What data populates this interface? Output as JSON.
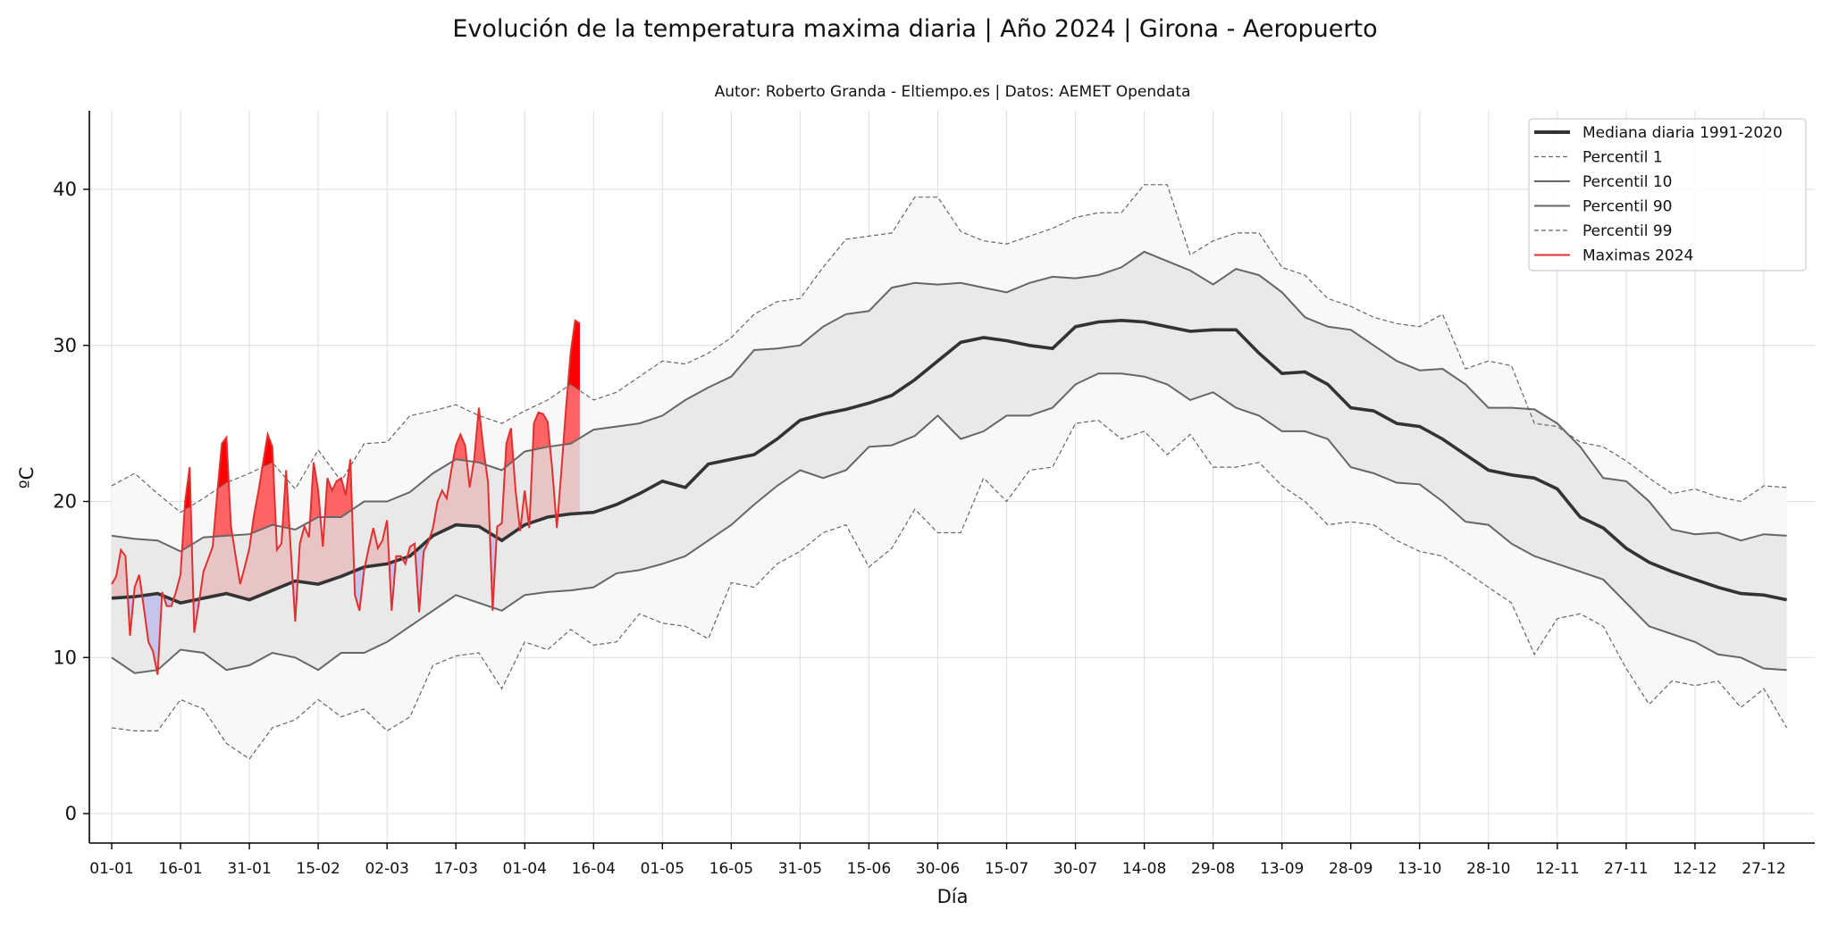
{
  "chart_data": {
    "type": "line",
    "title": "Evolución de la temperatura maxima diaria | Año 2024 | Girona - Aeropuerto",
    "subtitle": "Autor: Roberto Granda - Eltiempo.es | Datos: AEMET Opendata",
    "xlabel": "Día",
    "ylabel": "ºC",
    "ylim": [
      -1.9,
      45
    ],
    "yticks": [
      0,
      10,
      20,
      30,
      40
    ],
    "xtick_labels": [
      "01-01",
      "16-01",
      "31-01",
      "15-02",
      "02-03",
      "17-03",
      "01-04",
      "16-04",
      "01-05",
      "16-05",
      "31-05",
      "15-06",
      "30-06",
      "15-07",
      "30-07",
      "14-08",
      "29-08",
      "13-09",
      "28-09",
      "13-10",
      "28-10",
      "12-11",
      "27-11",
      "12-12",
      "27-12"
    ],
    "xtick_step_days": 15,
    "grid": true,
    "legend_position": "top-right",
    "legend": [
      "Mediana diaria 1991-2020",
      "Percentil 1",
      "Percentil 10",
      "Percentil 90",
      "Percentil 99",
      "Maximas 2024"
    ],
    "colors": {
      "median": "#333333",
      "percentile": "#666666",
      "max2024": "#e03030",
      "band_outer": "#f8f8f8",
      "band_inner": "#e9e9e9",
      "above_median": "#e8c4c4",
      "above_p90": "#ff6464",
      "above_p99": "#ff0000",
      "below_median": "#c4c4ec"
    },
    "climatology_day_step": 5,
    "series": [
      {
        "name": "Mediana diaria 1991-2020",
        "values": [
          13.8,
          13.9,
          14.1,
          13.5,
          13.8,
          14.1,
          13.7,
          14.3,
          14.9,
          14.7,
          15.2,
          15.8,
          16.0,
          16.5,
          17.8,
          18.5,
          18.4,
          17.5,
          18.5,
          19.0,
          19.2,
          19.3,
          19.8,
          20.5,
          21.3,
          20.9,
          22.4,
          22.7,
          23.0,
          24.0,
          25.2,
          25.6,
          25.9,
          26.3,
          26.8,
          27.8,
          29.0,
          30.2,
          30.5,
          30.3,
          30.0,
          29.8,
          31.2,
          31.5,
          31.6,
          31.5,
          31.2,
          30.9,
          31.0,
          31.0,
          29.5,
          28.2,
          28.3,
          27.5,
          26.0,
          25.8,
          25.0,
          24.8,
          24.0,
          23.0,
          22.0,
          21.7,
          21.5,
          20.8,
          19.0,
          18.3,
          17.0,
          16.1,
          15.5,
          15.0,
          14.5,
          14.1,
          14.0,
          13.7
        ]
      },
      {
        "name": "Percentil 1",
        "values": [
          5.5,
          5.3,
          5.3,
          7.3,
          6.7,
          4.5,
          3.5,
          5.5,
          6.0,
          7.3,
          6.2,
          6.7,
          5.3,
          6.2,
          9.5,
          10.1,
          10.3,
          8.0,
          11.0,
          10.5,
          11.8,
          10.8,
          11.0,
          12.8,
          12.2,
          12.0,
          11.2,
          14.8,
          14.5,
          16.0,
          16.8,
          18.0,
          18.5,
          15.8,
          17.0,
          19.5,
          18.0,
          18.0,
          21.5,
          20.0,
          22.0,
          22.2,
          25.0,
          25.2,
          24.0,
          24.5,
          23.0,
          24.3,
          22.2,
          22.2,
          22.5,
          21.0,
          20.0,
          18.5,
          18.7,
          18.5,
          17.5,
          16.8,
          16.5,
          15.5,
          14.5,
          13.5,
          10.2,
          12.5,
          12.8,
          12.0,
          9.3,
          7.0,
          8.5,
          8.2,
          8.5,
          6.8,
          8.0,
          5.5
        ]
      },
      {
        "name": "Percentil 10",
        "values": [
          10.0,
          9.0,
          9.2,
          10.5,
          10.3,
          9.2,
          9.5,
          10.3,
          10.0,
          9.2,
          10.3,
          10.3,
          11.0,
          12.0,
          13.0,
          14.0,
          13.5,
          13.0,
          14.0,
          14.2,
          14.3,
          14.5,
          15.4,
          15.6,
          16.0,
          16.5,
          17.5,
          18.5,
          19.8,
          21.0,
          22.0,
          21.5,
          22.0,
          23.5,
          23.6,
          24.2,
          25.5,
          24.0,
          24.5,
          25.5,
          25.5,
          26.0,
          27.5,
          28.2,
          28.2,
          28.0,
          27.5,
          26.5,
          27.0,
          26.0,
          25.5,
          24.5,
          24.5,
          24.0,
          22.2,
          21.8,
          21.2,
          21.1,
          20.0,
          18.7,
          18.5,
          17.3,
          16.5,
          16.0,
          15.5,
          15.0,
          13.5,
          12.0,
          11.5,
          11.0,
          10.2,
          10.0,
          9.3,
          9.2
        ]
      },
      {
        "name": "Percentil 90",
        "values": [
          17.8,
          17.6,
          17.5,
          16.8,
          17.7,
          17.8,
          17.9,
          18.5,
          18.2,
          19.0,
          19.0,
          20.0,
          20.0,
          20.6,
          21.8,
          22.7,
          22.5,
          22.0,
          23.2,
          23.5,
          23.7,
          24.6,
          24.8,
          25.0,
          25.5,
          26.5,
          27.3,
          28.0,
          29.7,
          29.8,
          30.0,
          31.2,
          32.0,
          32.2,
          33.7,
          34.0,
          33.9,
          34.0,
          33.7,
          33.4,
          34.0,
          34.4,
          34.3,
          34.5,
          35.0,
          36.0,
          35.4,
          34.8,
          33.9,
          34.9,
          34.5,
          33.4,
          31.8,
          31.2,
          31.0,
          30.0,
          29.0,
          28.4,
          28.5,
          27.5,
          26.0,
          26.0,
          25.9,
          25.0,
          23.5,
          21.5,
          21.3,
          20.0,
          18.2,
          17.9,
          18.0,
          17.5,
          17.9,
          17.8
        ]
      },
      {
        "name": "Percentil 99",
        "values": [
          21.0,
          21.8,
          20.5,
          19.3,
          20.2,
          21.2,
          21.8,
          22.5,
          20.8,
          23.3,
          21.3,
          23.7,
          23.8,
          25.5,
          25.8,
          26.2,
          25.5,
          25.0,
          25.8,
          26.5,
          27.5,
          26.5,
          27.0,
          28.0,
          29.0,
          28.8,
          29.5,
          30.5,
          32.0,
          32.8,
          33.0,
          35.0,
          36.8,
          37.0,
          37.2,
          39.5,
          39.5,
          37.3,
          36.7,
          36.5,
          37.0,
          37.5,
          38.2,
          38.5,
          38.5,
          40.3,
          40.3,
          35.8,
          36.7,
          37.2,
          37.2,
          35.0,
          34.5,
          33.0,
          32.5,
          31.8,
          31.4,
          31.2,
          32.0,
          28.5,
          29.0,
          28.7,
          25.0,
          24.8,
          23.8,
          23.5,
          22.6,
          21.5,
          20.5,
          20.8,
          20.3,
          20.0,
          21.0,
          20.9
        ]
      },
      {
        "name": "Maximas 2024",
        "values": [
          14.7,
          15.2,
          16.9,
          16.5,
          11.4,
          14.5,
          15.3,
          13.2,
          11.0,
          10.4,
          8.9,
          14.2,
          13.3,
          13.3,
          14.2,
          15.3,
          20.0,
          22.2,
          11.6,
          13.5,
          15.5,
          16.3,
          17.1,
          20.5,
          23.7,
          24.1,
          18.4,
          16.5,
          14.7,
          15.8,
          17.0,
          19.1,
          20.7,
          22.5,
          24.3,
          23.5,
          16.9,
          17.3,
          22.0,
          17.0,
          12.3,
          17.3,
          18.4,
          17.7,
          22.5,
          20.7,
          17.1,
          21.5,
          20.7,
          21.3,
          21.5,
          20.4,
          22.7,
          14.0,
          13.0,
          15.6,
          17.0,
          18.3,
          17.0,
          17.5,
          18.8,
          13.0,
          16.5,
          16.5,
          16.0,
          17.1,
          17.3,
          12.9,
          16.8,
          17.4,
          18.3,
          20.0,
          20.7,
          20.2,
          22.0,
          23.6,
          24.3,
          23.6,
          20.9,
          22.7,
          26.0,
          23.4,
          21.2,
          13.0,
          18.4,
          18.6,
          23.7,
          24.7,
          20.7,
          18.1,
          20.7,
          18.3,
          25.0,
          25.7,
          25.6,
          25.1,
          22.0,
          18.3,
          22.0,
          26.0,
          29.5,
          31.6,
          31.4
        ]
      }
    ]
  }
}
